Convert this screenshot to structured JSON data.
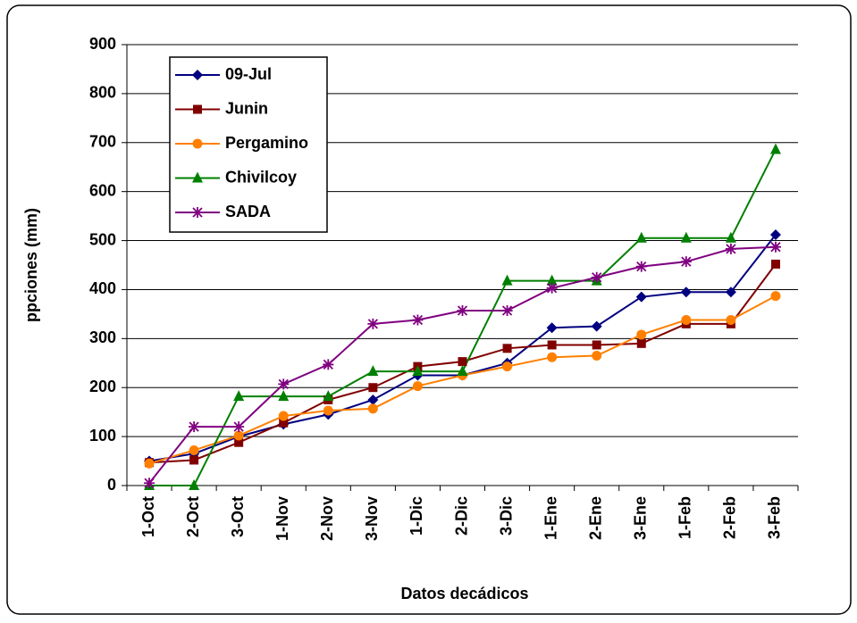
{
  "chart_data": {
    "type": "line",
    "x_label": "Datos decádicos",
    "y_label": "ppciones (mm)",
    "categories": [
      "1-Oct",
      "2-Oct",
      "3-Oct",
      "1-Nov",
      "2-Nov",
      "3-Nov",
      "1-Dic",
      "2-Dic",
      "3-Dic",
      "1-Ene",
      "2-Ene",
      "3-Ene",
      "1-Feb",
      "2-Feb",
      "3-Feb"
    ],
    "series": [
      {
        "name": "09-Jul",
        "color": "#000080",
        "marker": "diamond",
        "values": [
          50,
          65,
          100,
          125,
          145,
          175,
          225,
          225,
          250,
          322,
          325,
          385,
          395,
          395,
          512
        ]
      },
      {
        "name": "Junin",
        "color": "#800000",
        "marker": "square",
        "values": [
          47,
          52,
          88,
          128,
          175,
          200,
          243,
          253,
          280,
          287,
          287,
          290,
          330,
          330,
          452
        ]
      },
      {
        "name": "Pergamino",
        "color": "#ff8000",
        "marker": "circle",
        "values": [
          45,
          72,
          102,
          142,
          153,
          157,
          203,
          225,
          243,
          262,
          265,
          308,
          338,
          338,
          387
        ]
      },
      {
        "name": "Chivilcoy",
        "color": "#008000",
        "marker": "triangle",
        "values": [
          0,
          0,
          182,
          182,
          182,
          233,
          233,
          233,
          418,
          418,
          418,
          505,
          505,
          505,
          686
        ]
      },
      {
        "name": "SADA",
        "color": "#800080",
        "marker": "star",
        "values": [
          5,
          120,
          120,
          207,
          247,
          330,
          338,
          357,
          357,
          403,
          425,
          447,
          457,
          483,
          487
        ]
      }
    ],
    "ylim": [
      0,
      900
    ],
    "yticks": [
      0,
      100,
      200,
      300,
      400,
      500,
      600,
      700,
      800,
      900
    ],
    "grid": true,
    "legend": "top-left"
  }
}
